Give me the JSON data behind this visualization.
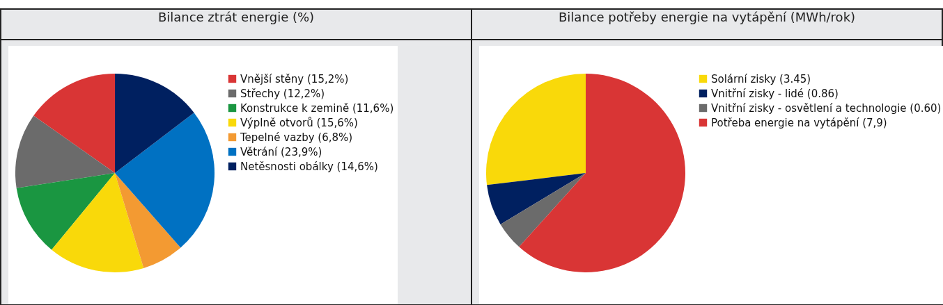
{
  "chart_data": [
    {
      "type": "pie",
      "title": "Bilance ztrát energie (%)",
      "legend": "right",
      "categories": [
        "Vnější stěny (15,2%)",
        "Střechy (12,2%)",
        "Konstrukce k zemině (11,6%)",
        "Výplně otvorů (15,6%)",
        "Tepelné vazby (6,8%)",
        "Větrání (23,9%)",
        "Netěsnosti obálky (14,6%)"
      ],
      "values": [
        15.2,
        12.2,
        11.6,
        15.6,
        6.8,
        23.9,
        14.6
      ],
      "colors": [
        "#d93535",
        "#6b6b6b",
        "#1a9641",
        "#f9d90a",
        "#f39a32",
        "#0071c2",
        "#002060"
      ]
    },
    {
      "type": "pie",
      "title": "Bilance potřeby energie na vytápění (MWh/rok)",
      "legend": "right",
      "categories": [
        "Solární zisky (3.45)",
        "Vnitřní zisky - lidé (0.86)",
        "Vnitřní zisky - osvětlení a technologie (0.60)",
        "Potřeba energie na vytápění (7,9)"
      ],
      "values": [
        3.45,
        0.86,
        0.6,
        7.9
      ],
      "colors": [
        "#f9d90a",
        "#002060",
        "#6b6b6b",
        "#d93535"
      ]
    }
  ]
}
